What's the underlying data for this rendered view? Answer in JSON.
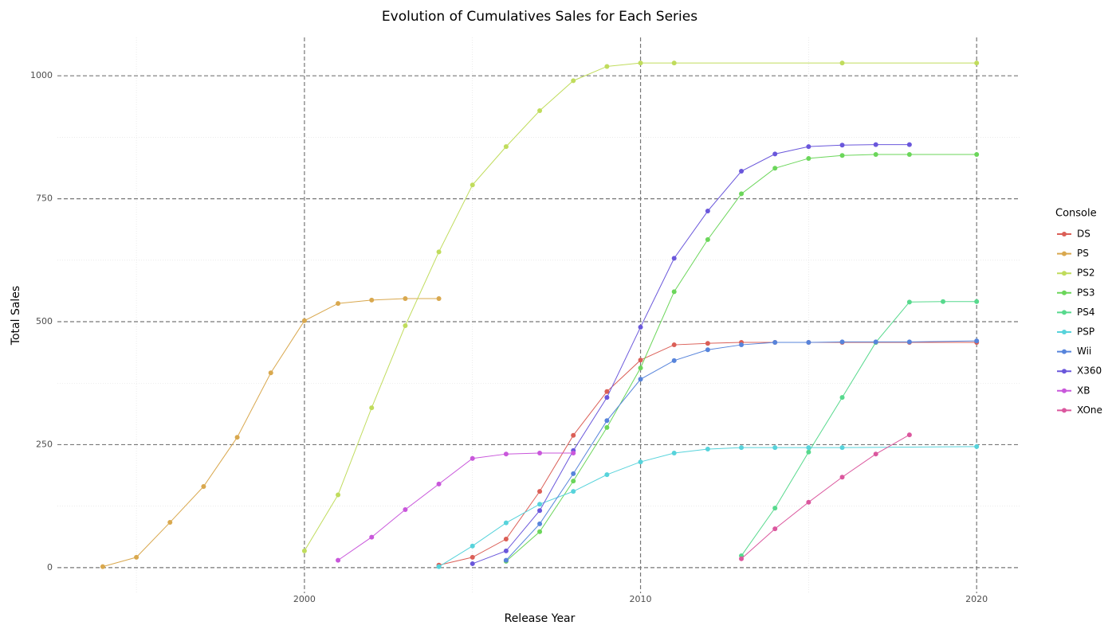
{
  "chart_data": {
    "type": "line",
    "title": "Evolution of Cumulatives Sales for Each Series",
    "x_label": "Release Year",
    "y_label": "Total Sales",
    "legend_title": "Console",
    "legend": "right",
    "xlim": [
      1992.65,
      2021.3
    ],
    "ylim": [
      -52,
      1078
    ],
    "xticks": [
      2000,
      2010,
      2020
    ],
    "yticks": [
      0,
      250,
      500,
      750,
      1000
    ],
    "minor_xticks": [
      1995,
      2005,
      2015
    ],
    "minor_yticks": [
      125,
      375,
      625,
      875
    ],
    "grid": true,
    "series": [
      {
        "name": "DS",
        "color": "#db5f57",
        "x": [
          2004,
          2005,
          2006,
          2007,
          2008,
          2009,
          2010,
          2011,
          2012,
          2013,
          2014,
          2015,
          2016,
          2017,
          2018,
          2020
        ],
        "values": [
          5,
          21,
          58,
          155,
          269,
          358,
          422,
          453,
          456,
          458,
          458,
          458,
          458,
          458,
          458,
          458
        ]
      },
      {
        "name": "PS",
        "color": "#d9a84e",
        "x": [
          1994,
          1995,
          1996,
          1997,
          1998,
          1999,
          2000,
          2001,
          2002,
          2003,
          2004
        ],
        "values": [
          2,
          21,
          92,
          165,
          265,
          396,
          502,
          537,
          544,
          547,
          547
        ]
      },
      {
        "name": "PS2",
        "color": "#c0dc5c",
        "x": [
          2000,
          2001,
          2002,
          2003,
          2004,
          2005,
          2006,
          2007,
          2008,
          2009,
          2010,
          2011,
          2016,
          2020
        ],
        "values": [
          34,
          148,
          325,
          492,
          642,
          778,
          856,
          929,
          990,
          1019,
          1026,
          1026,
          1026,
          1026
        ]
      },
      {
        "name": "PS3",
        "color": "#6bd65a",
        "x": [
          2006,
          2007,
          2008,
          2009,
          2010,
          2011,
          2012,
          2013,
          2014,
          2015,
          2016,
          2017,
          2018,
          2020
        ],
        "values": [
          13,
          73,
          176,
          285,
          406,
          561,
          667,
          760,
          812,
          832,
          838,
          840,
          840,
          840
        ]
      },
      {
        "name": "PS4",
        "color": "#57d98d",
        "x": [
          2013,
          2014,
          2015,
          2016,
          2017,
          2018,
          2019,
          2020
        ],
        "values": [
          24,
          121,
          235,
          346,
          458,
          540,
          541,
          541
        ]
      },
      {
        "name": "PSP",
        "color": "#57d3db",
        "x": [
          2004,
          2005,
          2006,
          2007,
          2008,
          2009,
          2010,
          2011,
          2012,
          2013,
          2014,
          2015,
          2016,
          2020
        ],
        "values": [
          2,
          44,
          91,
          129,
          155,
          189,
          215,
          233,
          241,
          244,
          244,
          244,
          244,
          246
        ]
      },
      {
        "name": "Wii",
        "color": "#5784db",
        "x": [
          2006,
          2007,
          2008,
          2009,
          2010,
          2011,
          2012,
          2013,
          2014,
          2015,
          2016,
          2017,
          2018,
          2020
        ],
        "values": [
          15,
          89,
          191,
          299,
          383,
          421,
          443,
          453,
          458,
          458,
          459,
          459,
          459,
          461
        ]
      },
      {
        "name": "X360",
        "color": "#6a57db",
        "x": [
          2005,
          2006,
          2007,
          2008,
          2009,
          2010,
          2011,
          2012,
          2013,
          2014,
          2015,
          2016,
          2017,
          2018
        ],
        "values": [
          8,
          34,
          116,
          238,
          346,
          489,
          629,
          725,
          806,
          841,
          856,
          859,
          860,
          860
        ]
      },
      {
        "name": "XB",
        "color": "#c957db",
        "x": [
          2001,
          2002,
          2003,
          2004,
          2005,
          2006,
          2007,
          2008
        ],
        "values": [
          15,
          62,
          118,
          170,
          222,
          231,
          233,
          233
        ]
      },
      {
        "name": "XOne",
        "color": "#db579e",
        "x": [
          2013,
          2014,
          2015,
          2016,
          2017,
          2018
        ],
        "values": [
          18,
          79,
          133,
          184,
          231,
          270
        ]
      }
    ]
  }
}
